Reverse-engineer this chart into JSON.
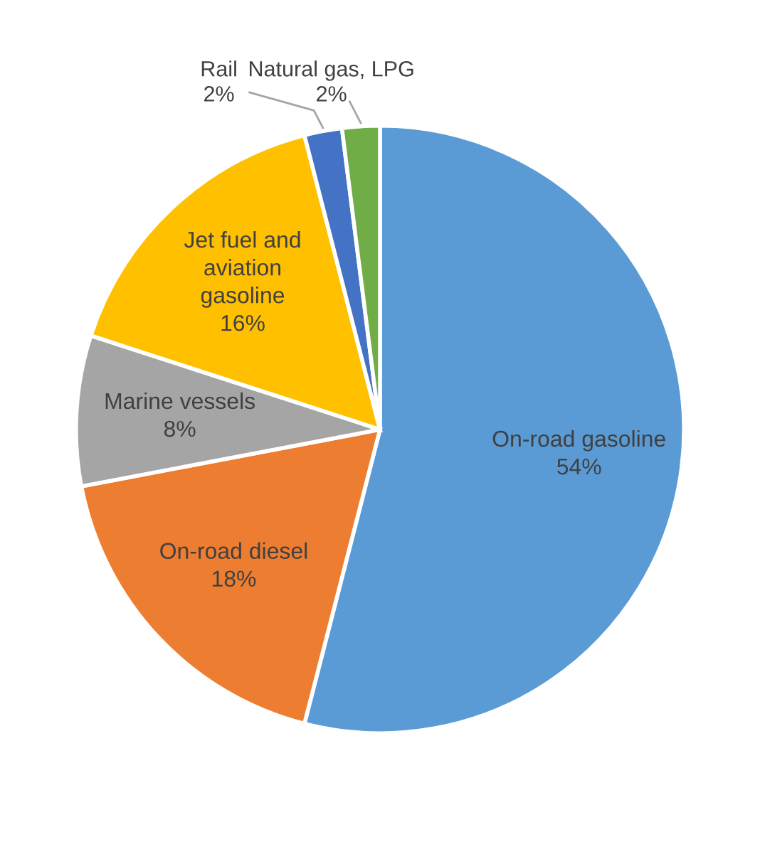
{
  "chart_data": {
    "type": "pie",
    "categories": [
      "On-road gasoline",
      "On-road diesel",
      "Marine vessels",
      "Jet fuel and\naviation\ngasoline",
      "Rail",
      "Natural gas, LPG"
    ],
    "values": [
      54,
      18,
      8,
      16,
      2,
      2
    ],
    "colors": [
      "#5b9bd5",
      "#ed7d31",
      "#a5a5a5",
      "#ffc000",
      "#4472c4",
      "#70ad47"
    ],
    "value_labels": [
      "54%",
      "18%",
      "8%",
      "16%",
      "2%",
      "2%"
    ],
    "legend": false
  }
}
